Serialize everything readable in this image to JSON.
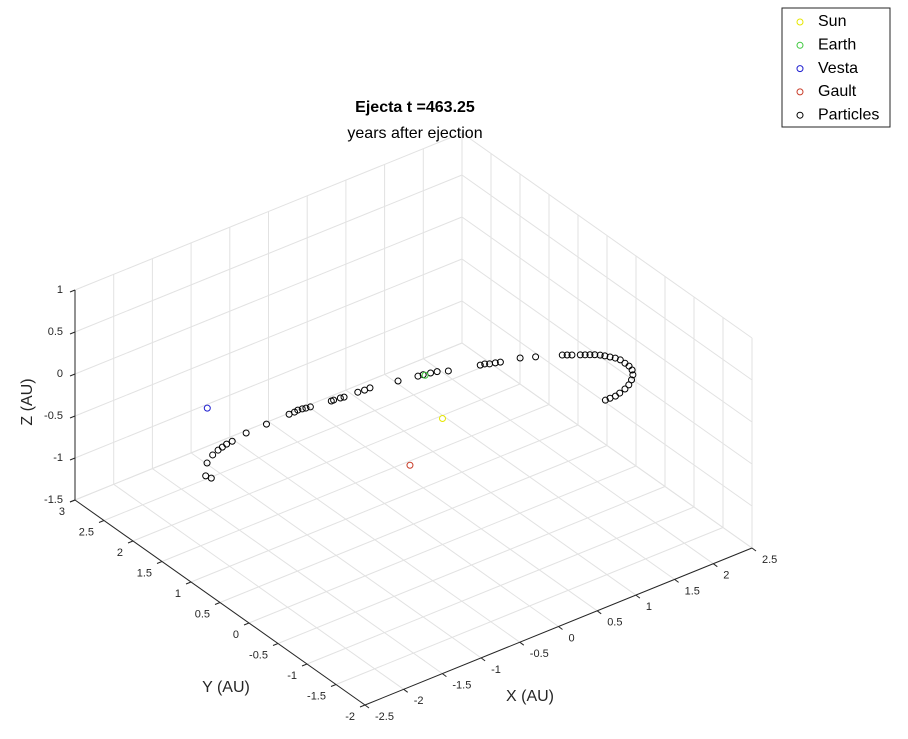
{
  "chart_data": {
    "type": "scatter3d",
    "title": "Ejecta t =463.25",
    "subtitle": "years after ejection",
    "xlabel": "X (AU)",
    "ylabel": "Y (AU)",
    "zlabel": "Z (AU)",
    "xlim": [
      -2.5,
      2.5
    ],
    "ylim": [
      -2,
      3
    ],
    "zlim": [
      -1.5,
      1
    ],
    "xticks": [
      -2.5,
      -2,
      -1.5,
      -1,
      -0.5,
      0,
      0.5,
      1,
      1.5,
      2,
      2.5
    ],
    "yticks": [
      -2,
      -1.5,
      -1,
      -0.5,
      0,
      0.5,
      1,
      1.5,
      2,
      2.5,
      3
    ],
    "zticks": [
      -1.5,
      -1,
      -0.5,
      0,
      0.5,
      1
    ],
    "grid": true,
    "legend": "upper right",
    "series": [
      {
        "name": "Sun",
        "color": "#e6e600",
        "x": [
          0
        ],
        "y": [
          0
        ],
        "z": [
          0
        ]
      },
      {
        "name": "Earth",
        "color": "#3cc83c",
        "x": [
          0.36
        ],
        "y": [
          0.78
        ],
        "z": [
          0
        ]
      },
      {
        "name": "Vesta",
        "color": "#1f1fd0",
        "x": [
          -1.81
        ],
        "y": [
          1.64
        ],
        "z": [
          0
        ]
      },
      {
        "name": "Gault",
        "color": "#c83c28",
        "x": [
          -0.81
        ],
        "y": [
          -0.52
        ],
        "z": [
          0
        ]
      },
      {
        "name": "Particles",
        "color": "#000000",
        "x": [
          -2.61,
          -2.59,
          -2.45,
          -2.31,
          -2.21,
          -2.14,
          -2.07,
          -1.99,
          -1.78,
          -1.51,
          -1.21,
          -1.14,
          -1.09,
          -1.04,
          -1.0,
          -0.95,
          -0.71,
          -0.68,
          -0.6,
          -0.56,
          -0.39,
          -0.31,
          -0.24,
          0.07,
          0.29,
          0.35,
          0.43,
          0.5,
          0.6,
          0.93,
          0.98,
          1.02,
          1.08,
          1.13,
          1.34,
          1.48,
          1.72,
          1.76,
          1.8,
          1.87,
          1.91,
          1.95,
          1.99,
          2.03,
          2.06,
          2.09,
          2.12,
          2.14,
          2.14,
          2.14,
          2.12,
          2.07,
          2.0,
          1.92,
          1.84,
          1.75,
          1.68,
          1.61,
          1.55
        ],
        "y": [
          0.6,
          0.53,
          0.79,
          0.88,
          0.92,
          0.94,
          0.96,
          0.97,
          1.01,
          1.02,
          1.03,
          1.03,
          1.04,
          1.03,
          1.02,
          1.01,
          0.97,
          0.97,
          0.96,
          0.95,
          0.94,
          0.93,
          0.93,
          0.86,
          0.81,
          0.8,
          0.78,
          0.76,
          0.7,
          0.59,
          0.58,
          0.55,
          0.53,
          0.51,
          0.45,
          0.37,
          0.23,
          0.2,
          0.17,
          0.12,
          0.09,
          0.06,
          0.03,
          -0.01,
          -0.05,
          -0.1,
          -0.15,
          -0.21,
          -0.29,
          -0.36,
          -0.44,
          -0.52,
          -0.59,
          -0.65,
          -0.69,
          -0.72,
          -0.74,
          -0.74,
          -0.74
        ],
        "z": [
          0,
          0,
          0,
          0,
          0,
          0,
          0,
          0,
          0,
          0,
          0,
          0,
          0,
          0,
          0,
          0,
          0,
          0,
          0,
          0,
          0,
          0,
          0,
          0,
          0,
          0,
          0,
          0,
          0,
          0,
          0,
          0,
          0,
          0,
          0,
          0,
          0,
          0,
          0,
          0,
          0,
          0,
          0,
          0,
          0,
          0,
          0,
          0,
          0,
          0,
          0,
          0,
          0,
          0,
          0,
          0,
          0,
          0,
          0
        ]
      }
    ]
  }
}
